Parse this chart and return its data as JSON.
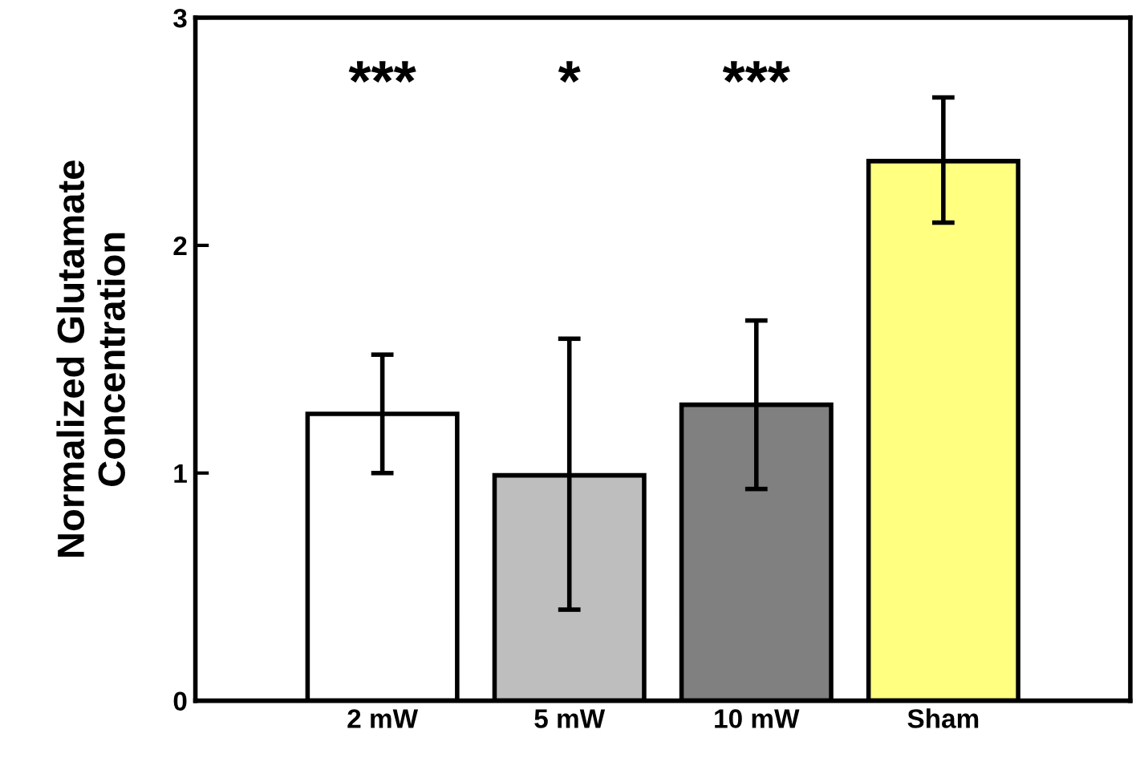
{
  "chart_data": {
    "type": "bar",
    "ylabel": "Normalized Glutamate\nConcentration",
    "categories": [
      "2 mW",
      "5 mW",
      "10 mW",
      "Sham"
    ],
    "values": [
      1.26,
      0.99,
      1.3,
      2.37
    ],
    "errors": [
      [
        1.0,
        1.52
      ],
      [
        0.4,
        1.59
      ],
      [
        0.93,
        1.67
      ],
      [
        2.1,
        2.65
      ]
    ],
    "colors": [
      "#ffffff",
      "#bebebe",
      "#808080",
      "#ffff80"
    ],
    "ylim": [
      0,
      3
    ],
    "yticks": [
      0,
      1,
      2,
      3
    ],
    "grid": false,
    "annotations": [
      "***",
      "*",
      "***"
    ]
  }
}
